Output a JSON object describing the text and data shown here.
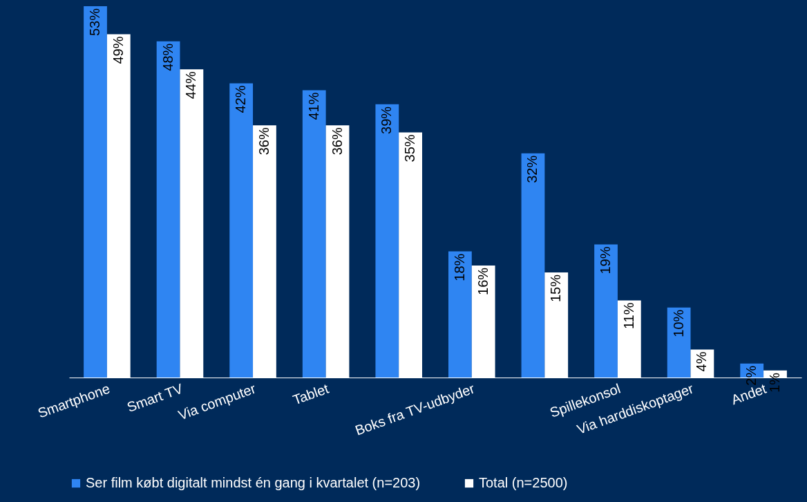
{
  "chart_data": {
    "type": "bar",
    "categories": [
      "Smartphone",
      "Smart TV",
      "Via computer",
      "Tablet",
      null,
      "Boks fra TV-udbyder",
      null,
      "Spillekonsol",
      "Via harddiskoptager",
      "Andet"
    ],
    "series": [
      {
        "name": "Ser film købt digitalt mindst én gang i kvartalet (n=203)",
        "color": "#2f85f2",
        "values": [
          53,
          48,
          42,
          41,
          39,
          18,
          32,
          19,
          10,
          2
        ],
        "value_labels": [
          "53%",
          "48%",
          "42%",
          "41%",
          "39%",
          "18%",
          "32%",
          "19%",
          "10%",
          "2%"
        ]
      },
      {
        "name": "Total (n=2500)",
        "color": "#ffffff",
        "values": [
          49,
          44,
          36,
          36,
          35,
          16,
          15,
          11,
          4,
          1
        ],
        "value_labels": [
          "49%",
          "44%",
          "36%",
          "36%",
          "35%",
          "16%",
          "15%",
          "11%",
          "4%",
          "1%"
        ]
      }
    ],
    "legend": "bottom",
    "tick_labels": "x"
  }
}
